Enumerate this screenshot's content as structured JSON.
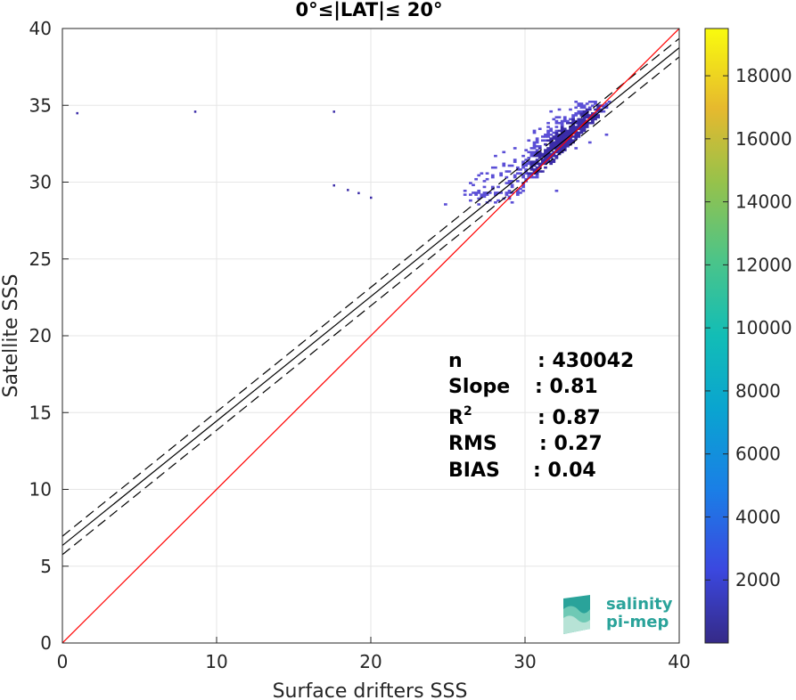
{
  "chart_data": {
    "type": "heatmap",
    "title": "0°≤|LAT|≤ 20°",
    "xlabel": "Surface drifters SSS",
    "ylabel": "Satellite SSS",
    "xlim": [
      0,
      40
    ],
    "ylim": [
      0,
      40
    ],
    "xticks": [
      "0",
      "10",
      "20",
      "30",
      "40"
    ],
    "yticks": [
      "0",
      "5",
      "10",
      "15",
      "20",
      "25",
      "30",
      "35",
      "40"
    ],
    "grid": true,
    "colorbar": {
      "range": [
        0,
        19500
      ],
      "ticks": [
        "2000",
        "4000",
        "6000",
        "8000",
        "10000",
        "12000",
        "14000",
        "16000",
        "18000"
      ],
      "colormap": "parula"
    },
    "lines": {
      "identity": {
        "slope": 1,
        "intercept": 0,
        "color": "#ff0000"
      },
      "fit": {
        "slope": 0.81,
        "intercept": 6.35,
        "color": "#000000"
      },
      "fit_upper": {
        "slope": 0.81,
        "intercept": 6.95,
        "color": "#000000",
        "style": "dashed"
      },
      "fit_lower": {
        "slope": 0.81,
        "intercept": 5.75,
        "color": "#000000",
        "style": "dashed"
      }
    },
    "stats": [
      {
        "label": "n",
        "value": ": 430042"
      },
      {
        "label": "Slope",
        "value": ": 0.81"
      },
      {
        "label": "R",
        "sup": "2",
        "value": ": 0.87"
      },
      {
        "label": "RMS",
        "value": ": 0.27"
      },
      {
        "label": "BIAS",
        "value": ": 0.04"
      }
    ],
    "density_points": [
      {
        "x": 0.95,
        "y": 34.5,
        "count": 1
      },
      {
        "x": 8.6,
        "y": 34.6,
        "count": 1
      },
      {
        "x": 17.6,
        "y": 34.6,
        "count": 1
      },
      {
        "x": 17.6,
        "y": 29.8,
        "count": 1
      },
      {
        "x": 18.5,
        "y": 29.5,
        "count": 1
      },
      {
        "x": 19.2,
        "y": 29.3,
        "count": 1
      },
      {
        "x": 20.0,
        "y": 29.0,
        "count": 1
      }
    ],
    "density_cloud": {
      "x_range": [
        21.5,
        35.5
      ],
      "y_range": [
        28.5,
        35.3
      ],
      "center": [
        32.5,
        32.5
      ],
      "peak_count": 800
    }
  },
  "logo": {
    "line1": "salinity",
    "line2": "pi-mep"
  }
}
